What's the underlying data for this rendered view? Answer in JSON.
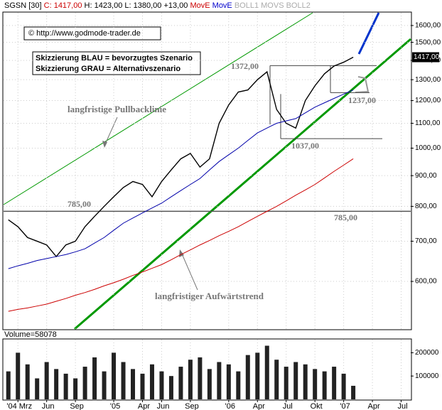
{
  "header": {
    "symbol": "SGSN [30]",
    "close": "C: 1417,00",
    "rest": "H: 1423,00 L: 1380,00 +13,00",
    "ma1": "MovE",
    "ma2": "MovE",
    "bands": "BOLL1 MOVS BOLL2"
  },
  "copyright": "© http://www.godmode-trader.de",
  "scenario": [
    "Skizzierung BLAU = bevorzugtes Szenario",
    "Skizzierung GRAU = Alternativszenario"
  ],
  "notes": [
    "langfristige Pullbacklinie",
    "langfristiger Aufwärtstrend"
  ],
  "last_price_label": "1417,00",
  "volume_label": "Volume=58078",
  "chart_data": [
    {
      "type": "line",
      "log_scale": true,
      "grid": true,
      "x": [
        0,
        1,
        2,
        3,
        4,
        5,
        6,
        7,
        8,
        9,
        10,
        11,
        12,
        13,
        14,
        15,
        16,
        17,
        18,
        19,
        20,
        21,
        22,
        23,
        24,
        25,
        26,
        27,
        28,
        29,
        30,
        31,
        32,
        33,
        34,
        35,
        36
      ],
      "series": [
        {
          "color": "#000000",
          "values": [
            760,
            740,
            710,
            700,
            690,
            660,
            690,
            700,
            740,
            770,
            800,
            830,
            860,
            880,
            870,
            830,
            880,
            920,
            960,
            980,
            930,
            960,
            1100,
            1180,
            1240,
            1250,
            1300,
            1340,
            1160,
            1100,
            1080,
            1200,
            1270,
            1330,
            1370,
            1390,
            1417
          ]
        },
        {
          "color": "#0000aa",
          "values": [
            630,
            637,
            643,
            650,
            655,
            660,
            665,
            672,
            680,
            695,
            710,
            730,
            750,
            765,
            780,
            795,
            810,
            830,
            850,
            870,
            890,
            920,
            950,
            975,
            1000,
            1030,
            1060,
            1080,
            1100,
            1110,
            1120,
            1145,
            1170,
            1190,
            1210,
            1230,
            1250
          ]
        },
        {
          "color": "#cc0000",
          "values": [
            535,
            539,
            542,
            546,
            550,
            556,
            562,
            569,
            575,
            582,
            590,
            597,
            605,
            614,
            622,
            631,
            640,
            652,
            665,
            677,
            690,
            702,
            715,
            727,
            740,
            755,
            770,
            785,
            800,
            817,
            835,
            852,
            870,
            892,
            915,
            937,
            960
          ]
        }
      ],
      "annotations": [
        {
          "label": "1372,00",
          "value": 1372
        },
        {
          "label": "1237,00",
          "value": 1237
        },
        {
          "label": "1037,00",
          "value": 1037
        },
        {
          "label": "785,00",
          "value": 785
        },
        {
          "label": "785,00",
          "value": 785
        }
      ],
      "xlim": [
        -0.5,
        42
      ],
      "xticks": [
        {
          "value": 1,
          "label": "'04 Mrz"
        },
        {
          "value": 4,
          "label": "Jun"
        },
        {
          "value": 7,
          "label": "Sep"
        },
        {
          "value": 11,
          "label": "'05"
        },
        {
          "value": 14,
          "label": "Apr"
        },
        {
          "value": 16,
          "label": "Jun"
        },
        {
          "value": 19,
          "label": "Sep"
        },
        {
          "value": 23,
          "label": "'06"
        },
        {
          "value": 26,
          "label": "Apr"
        },
        {
          "value": 29,
          "label": "Jul"
        },
        {
          "value": 32,
          "label": "Okt"
        },
        {
          "value": 35,
          "label": "'07"
        },
        {
          "value": 38,
          "label": "Apr"
        },
        {
          "value": 41,
          "label": "Jul"
        }
      ],
      "ylim": [
        500,
        1680
      ],
      "yticks": [
        {
          "value": 600,
          "label": "600,00"
        },
        {
          "value": 700,
          "label": "700,00"
        },
        {
          "value": 800,
          "label": "800,00"
        },
        {
          "value": 900,
          "label": "900,00"
        },
        {
          "value": 1000,
          "label": "1000,00"
        },
        {
          "value": 1100,
          "label": "1100,00"
        },
        {
          "value": 1200,
          "label": "1200,00"
        },
        {
          "value": 1300,
          "label": "1300,00"
        },
        {
          "value": 1400,
          "label": "1400,00"
        },
        {
          "value": 1500,
          "label": "1500,00"
        },
        {
          "value": 1600,
          "label": "1600,00"
        }
      ]
    },
    {
      "type": "bar",
      "color": "#222222",
      "x": [
        0,
        1,
        2,
        3,
        4,
        5,
        6,
        7,
        8,
        9,
        10,
        11,
        12,
        13,
        14,
        15,
        16,
        17,
        18,
        19,
        20,
        21,
        22,
        23,
        24,
        25,
        26,
        27,
        28,
        29,
        30,
        31,
        32,
        33,
        34,
        35,
        36
      ],
      "values": [
        120000,
        200000,
        150000,
        90000,
        160000,
        130000,
        110000,
        90000,
        140000,
        180000,
        120000,
        200000,
        160000,
        130000,
        110000,
        150000,
        120000,
        100000,
        140000,
        170000,
        180000,
        130000,
        160000,
        150000,
        120000,
        190000,
        200000,
        230000,
        170000,
        140000,
        160000,
        150000,
        130000,
        120000,
        140000,
        110000,
        58078
      ],
      "ylim": [
        0,
        256000
      ],
      "yticks": [
        100000,
        200000
      ]
    }
  ]
}
